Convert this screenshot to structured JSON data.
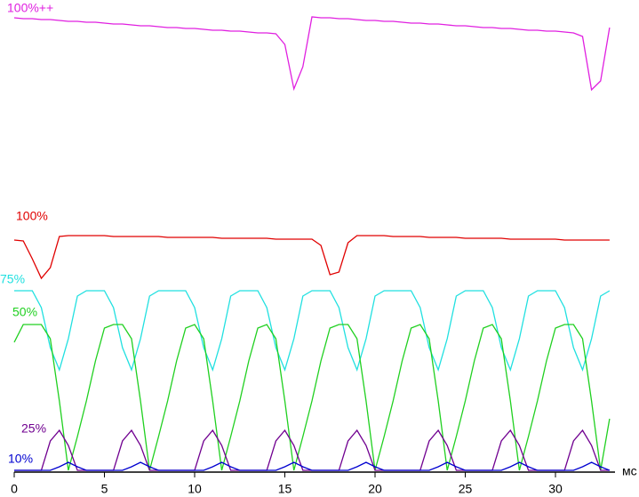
{
  "chart_data": {
    "type": "line",
    "x": [
      0,
      0.5,
      1,
      1.5,
      2,
      2.5,
      3,
      3.5,
      4,
      4.5,
      5,
      5.5,
      6,
      6.5,
      7,
      7.5,
      8,
      8.5,
      9,
      9.5,
      10,
      10.5,
      11,
      11.5,
      12,
      12.5,
      13,
      13.5,
      14,
      14.5,
      15,
      15.5,
      16,
      16.5,
      17,
      17.5,
      18,
      18.5,
      19,
      19.5,
      20,
      20.5,
      21,
      21.5,
      22,
      22.5,
      23,
      23.5,
      24,
      24.5,
      25,
      25.5,
      26,
      26.5,
      27,
      27.5,
      28,
      28.5,
      29,
      29.5,
      30,
      30.5,
      31,
      31.5,
      32,
      32.5,
      33
    ],
    "xlim": [
      0,
      33.3
    ],
    "xticks": [
      0,
      5,
      10,
      15,
      20,
      25,
      30
    ],
    "xlabel": "мс",
    "series": [
      {
        "name": "100%++",
        "color": "#e020e0",
        "values": [
          511,
          510,
          510,
          509,
          509,
          508,
          507,
          507,
          506,
          506,
          505,
          504,
          504,
          503,
          502,
          502,
          501,
          500,
          500,
          499,
          499,
          498,
          497,
          497,
          496,
          496,
          495,
          494,
          494,
          493,
          481,
          431,
          456,
          512,
          511,
          511,
          510,
          510,
          509,
          508,
          508,
          507,
          507,
          506,
          505,
          505,
          504,
          504,
          503,
          502,
          502,
          501,
          500,
          500,
          499,
          499,
          498,
          497,
          497,
          496,
          496,
          495,
          494,
          490,
          430,
          440,
          500
        ]
      },
      {
        "name": "100%",
        "color": "#e00000",
        "values": [
          261,
          260,
          240,
          218,
          230,
          265,
          266,
          266,
          266,
          266,
          266,
          265,
          265,
          265,
          265,
          265,
          265,
          264,
          264,
          264,
          264,
          264,
          264,
          263,
          263,
          263,
          263,
          263,
          263,
          262,
          262,
          262,
          262,
          262,
          255,
          222,
          225,
          258,
          266,
          266,
          266,
          266,
          265,
          265,
          265,
          265,
          264,
          264,
          264,
          264,
          263,
          263,
          263,
          263,
          263,
          262,
          262,
          262,
          262,
          262,
          262,
          261,
          261,
          261,
          261,
          261,
          261
        ]
      },
      {
        "name": "75%",
        "color": "#20e0e0",
        "values": [
          204,
          204,
          204,
          185,
          140,
          115,
          150,
          198,
          204,
          204,
          204,
          185,
          140,
          115,
          150,
          198,
          204,
          204,
          204,
          204,
          185,
          140,
          115,
          150,
          198,
          204,
          204,
          204,
          185,
          140,
          115,
          150,
          198,
          204,
          204,
          204,
          185,
          140,
          115,
          150,
          198,
          204,
          204,
          204,
          204,
          185,
          140,
          115,
          150,
          198,
          204,
          204,
          204,
          185,
          140,
          115,
          150,
          198,
          204,
          204,
          204,
          185,
          140,
          115,
          150,
          198,
          204
        ]
      },
      {
        "name": "50%",
        "color": "#20d020",
        "values": [
          146,
          166,
          166,
          166,
          150,
          80,
          2,
          40,
          80,
          125,
          162,
          166,
          166,
          150,
          80,
          2,
          40,
          80,
          125,
          162,
          166,
          150,
          80,
          2,
          40,
          80,
          125,
          162,
          166,
          150,
          80,
          2,
          40,
          80,
          125,
          162,
          166,
          166,
          150,
          80,
          2,
          40,
          80,
          125,
          162,
          166,
          150,
          80,
          2,
          40,
          80,
          125,
          162,
          166,
          150,
          80,
          2,
          40,
          80,
          125,
          162,
          166,
          166,
          150,
          80,
          2,
          60
        ]
      },
      {
        "name": "25%",
        "color": "#700090",
        "values": [
          2,
          2,
          2,
          2,
          35,
          47,
          30,
          2,
          2,
          2,
          2,
          2,
          35,
          47,
          30,
          2,
          2,
          2,
          2,
          2,
          2,
          35,
          47,
          30,
          2,
          2,
          2,
          2,
          2,
          35,
          47,
          30,
          2,
          2,
          2,
          2,
          2,
          35,
          47,
          30,
          2,
          2,
          2,
          2,
          2,
          2,
          35,
          47,
          30,
          2,
          2,
          2,
          2,
          2,
          35,
          47,
          30,
          2,
          2,
          2,
          2,
          2,
          35,
          47,
          30,
          2,
          2
        ]
      },
      {
        "name": "10%",
        "color": "#0000d0",
        "values": [
          2,
          2,
          2,
          2,
          2,
          6,
          11,
          6,
          2,
          2,
          2,
          2,
          2,
          6,
          11,
          6,
          2,
          2,
          2,
          2,
          2,
          2,
          6,
          11,
          6,
          2,
          2,
          2,
          2,
          2,
          6,
          11,
          6,
          2,
          2,
          2,
          2,
          2,
          6,
          11,
          6,
          2,
          2,
          2,
          2,
          2,
          2,
          6,
          11,
          6,
          2,
          2,
          2,
          2,
          2,
          6,
          11,
          6,
          2,
          2,
          2,
          2,
          2,
          6,
          11,
          6,
          2
        ]
      }
    ]
  }
}
